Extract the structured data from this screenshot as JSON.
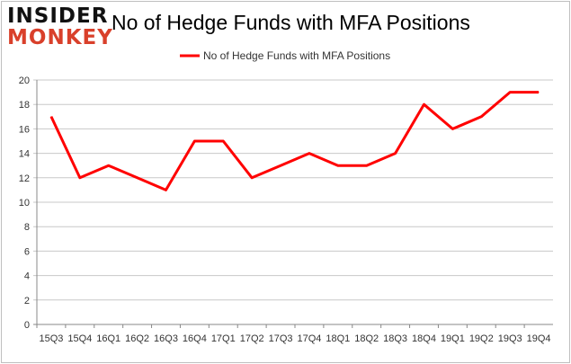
{
  "logo": {
    "line1": "INSIDER",
    "line2": "MONKEY"
  },
  "chart_data": {
    "type": "line",
    "title": "No of Hedge Funds with MFA Positions",
    "categories": [
      "15Q3",
      "15Q4",
      "16Q1",
      "16Q2",
      "16Q3",
      "16Q4",
      "17Q1",
      "17Q2",
      "17Q3",
      "17Q4",
      "18Q1",
      "18Q2",
      "18Q3",
      "18Q4",
      "19Q1",
      "19Q2",
      "19Q3",
      "19Q4"
    ],
    "series": [
      {
        "name": "No of Hedge Funds with MFA Positions",
        "color": "#ff0000",
        "values": [
          17,
          12,
          13,
          12,
          11,
          15,
          15,
          12,
          13,
          14,
          13,
          13,
          14,
          18,
          16,
          17,
          19,
          19
        ]
      }
    ],
    "ylim": [
      0,
      20
    ],
    "yticks": [
      0,
      2,
      4,
      6,
      8,
      10,
      12,
      14,
      16,
      18,
      20
    ],
    "grid": true,
    "legend": "top-center"
  }
}
